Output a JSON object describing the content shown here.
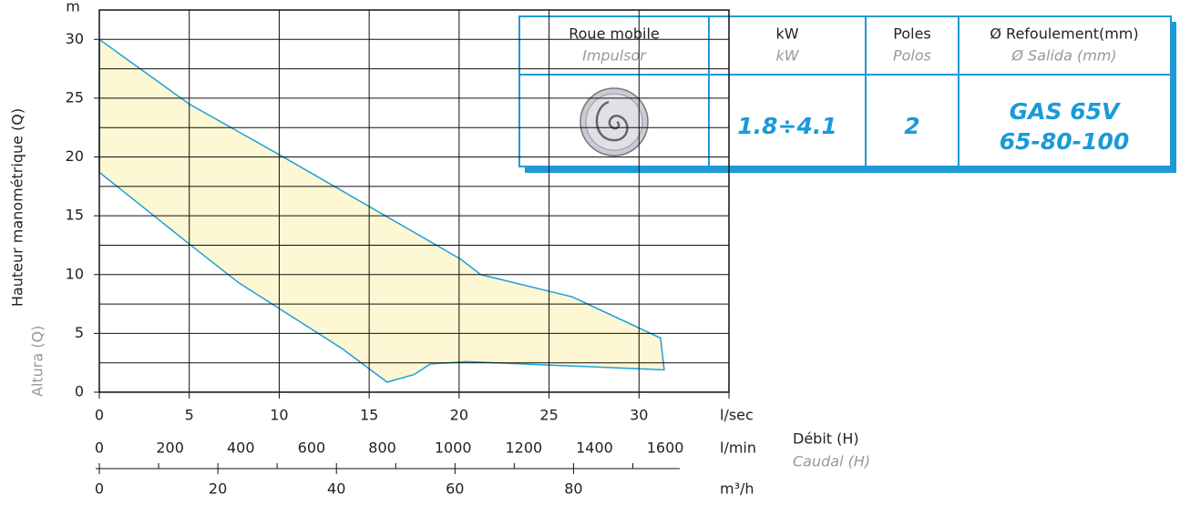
{
  "chart_data": {
    "type": "area",
    "y_title": "Hauteur manométrique (Q)",
    "y_subtitle": "Altura (Q)",
    "y_unit": "m",
    "x_title": "Débit (H)",
    "x_subtitle": "Caudal (H)",
    "x_unit": "l/sec",
    "xlim": [
      0,
      35
    ],
    "xticks": [
      0,
      5,
      10,
      15,
      20,
      25,
      30
    ],
    "ylim": [
      0,
      32.5
    ],
    "yticks": [
      0,
      5,
      10,
      15,
      20,
      25,
      30
    ],
    "minor_yticks": [
      2.5,
      7.5,
      12.5,
      17.5,
      22.5,
      27.5,
      32.5
    ],
    "grid": true,
    "series": [
      {
        "color": "#1ca0dc",
        "fill": "#fdf7d3",
        "x": [
          0,
          5,
          10,
          20.1,
          21.2,
          26.3,
          31.2,
          31.4,
          20.4,
          18.4,
          17.5,
          16,
          13.5,
          7.75,
          5,
          0
        ],
        "values": [
          30,
          24.5,
          20.2,
          11.3,
          10,
          8.1,
          4.6,
          1.9,
          2.6,
          2.4,
          1.5,
          0.85,
          3.7,
          9.3,
          12.6,
          18.7
        ]
      }
    ],
    "x2": {
      "unit": "l/min",
      "xlim": [
        0,
        1780
      ],
      "xticks": [
        0,
        200,
        400,
        600,
        800,
        1000,
        1200,
        1400,
        1600
      ]
    },
    "x3": {
      "unit": "m³/h",
      "xlim": [
        0,
        97
      ],
      "xticks": [
        0,
        20,
        40,
        60,
        80
      ],
      "minor_xticks": [
        10,
        30,
        50,
        70,
        90
      ]
    }
  },
  "table": {
    "header": [
      [
        "Roue mobile",
        "Impulsor"
      ],
      [
        "kW",
        "kW"
      ],
      [
        "Poles",
        "Polos"
      ],
      [
        "Ø Refoulement(mm)",
        "Ø Salida (mm)"
      ]
    ],
    "kw": "1.8÷4.1",
    "poles": "2",
    "outlet": [
      "GAS 65V",
      "65-80-100"
    ]
  }
}
